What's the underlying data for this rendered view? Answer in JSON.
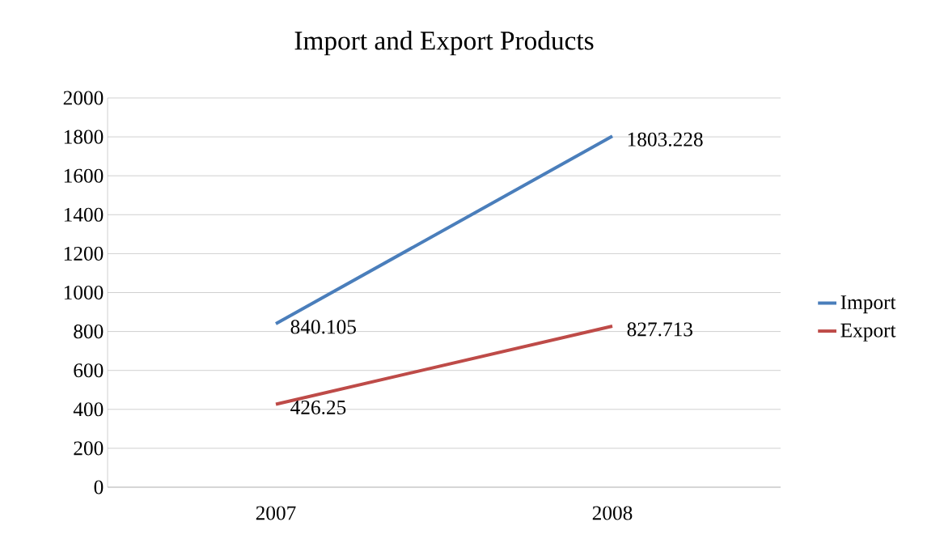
{
  "chart_data": {
    "type": "line",
    "title": "Import and Export Products",
    "categories": [
      "2007",
      "2008"
    ],
    "series": [
      {
        "name": "Import",
        "color": "#4a7ebb",
        "values": [
          840.105,
          1803.228
        ]
      },
      {
        "name": "Export",
        "color": "#be4b48",
        "values": [
          426.25,
          827.713
        ]
      }
    ],
    "ylim": [
      0,
      2000
    ],
    "yticks": [
      0,
      200,
      400,
      600,
      800,
      1000,
      1200,
      1400,
      1600,
      1800,
      2000
    ],
    "grid": "y",
    "legend": "right",
    "data_labels": true,
    "marker": "none",
    "line_style": "solid"
  }
}
